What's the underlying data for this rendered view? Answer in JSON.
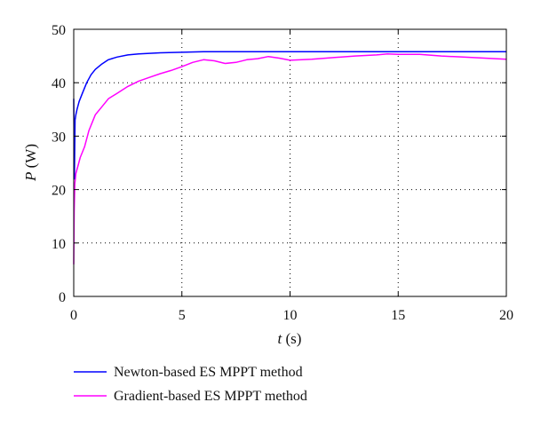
{
  "chart_data": {
    "type": "line",
    "title": "",
    "xlabel_var": "t",
    "xlabel_unit": " (s)",
    "ylabel_var": "P",
    "ylabel_unit": " (W)",
    "xlim": [
      0,
      20
    ],
    "ylim": [
      0,
      50
    ],
    "xticks": [
      0,
      5,
      10,
      15,
      20
    ],
    "yticks": [
      0,
      10,
      20,
      30,
      40,
      50
    ],
    "xtick_labels": [
      "0",
      "5",
      "10",
      "15",
      "20"
    ],
    "ytick_labels": [
      "0",
      "10",
      "20",
      "30",
      "40",
      "50"
    ],
    "grid": "dotted",
    "legend_position": "below",
    "series": [
      {
        "name": "Newton-based ES MPPT method",
        "color": "#0000ff",
        "x": [
          0,
          0.03,
          0.06,
          0.1,
          0.15,
          0.25,
          0.4,
          0.6,
          0.8,
          1.0,
          1.3,
          1.6,
          2.0,
          2.5,
          3.0,
          3.5,
          4.0,
          5.0,
          6.0,
          8.0,
          10.0,
          12.0,
          15.0,
          18.0,
          20.0
        ],
        "y": [
          37,
          22,
          33,
          34,
          35,
          36.5,
          38,
          40,
          41.5,
          42.5,
          43.5,
          44.3,
          44.8,
          45.2,
          45.4,
          45.5,
          45.6,
          45.7,
          45.8,
          45.8,
          45.8,
          45.8,
          45.8,
          45.8,
          45.8
        ]
      },
      {
        "name": "Gradient-based ES MPPT method",
        "color": "#ff00ff",
        "x": [
          0,
          0.02,
          0.05,
          0.1,
          0.2,
          0.3,
          0.5,
          0.7,
          1.0,
          1.3,
          1.6,
          2.0,
          2.5,
          3.0,
          3.5,
          4.0,
          4.5,
          5.0,
          5.5,
          6.0,
          6.5,
          7.0,
          7.5,
          8.0,
          8.5,
          9.0,
          9.5,
          10.0,
          11.0,
          12.0,
          13.0,
          14.0,
          14.5,
          15.0,
          16.0,
          17.0,
          18.0,
          19.0,
          20.0
        ],
        "y": [
          6,
          16,
          21,
          23,
          24.5,
          26,
          28,
          31,
          34,
          35.5,
          37,
          38,
          39.3,
          40.3,
          41,
          41.7,
          42.3,
          43,
          43.8,
          44.3,
          44.1,
          43.6,
          43.8,
          44.3,
          44.5,
          44.9,
          44.6,
          44.2,
          44.4,
          44.7,
          45,
          45.2,
          45.4,
          45.3,
          45.3,
          45,
          44.8,
          44.6,
          44.4
        ]
      }
    ]
  }
}
